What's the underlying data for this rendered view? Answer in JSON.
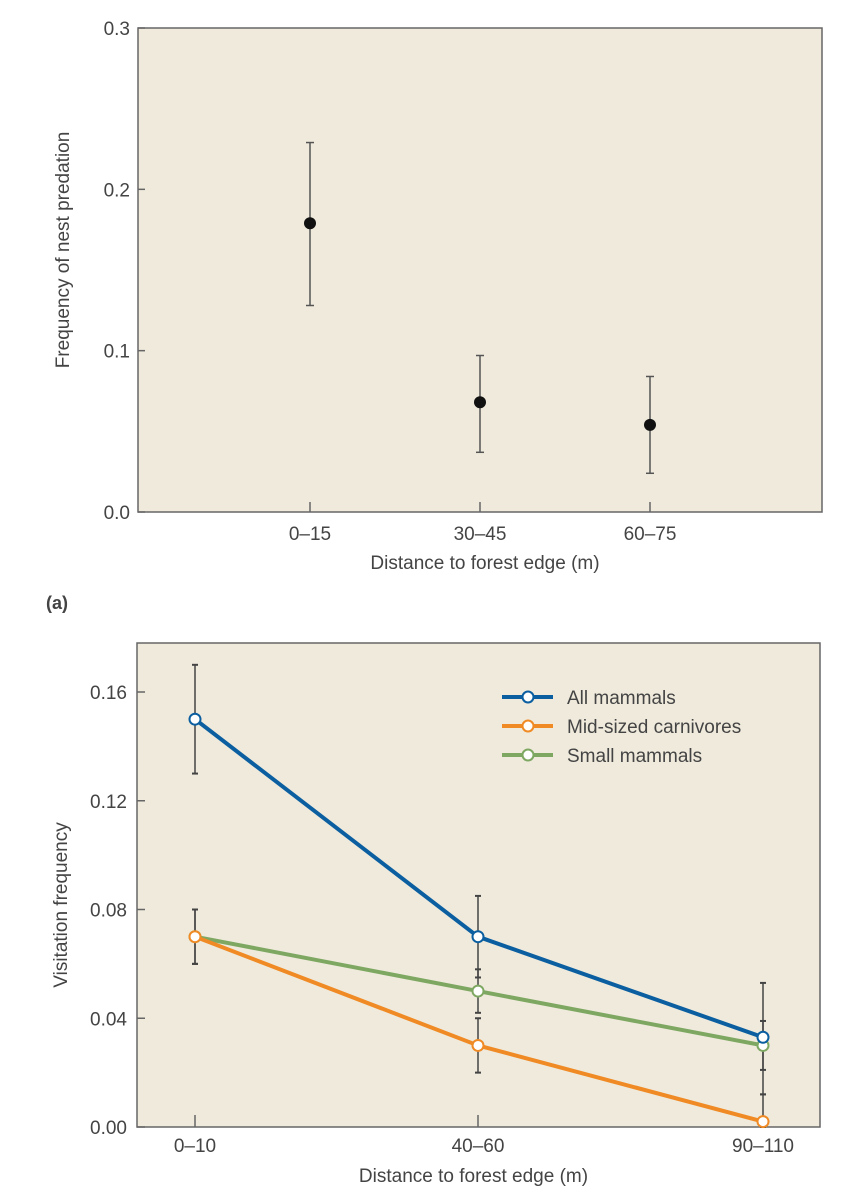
{
  "chart_data": [
    {
      "type": "scatter",
      "panel_label": "(a)",
      "xlabel": "Distance to forest edge (m)",
      "ylabel": "Frequency of nest predation",
      "categories": [
        "0–15",
        "30–45",
        "60–75"
      ],
      "values": [
        0.179,
        0.068,
        0.054
      ],
      "error_high": [
        0.229,
        0.097,
        0.084
      ],
      "error_low": [
        0.128,
        0.037,
        0.024
      ],
      "ylim": [
        0,
        0.3
      ],
      "yticks": [
        "0.0",
        "0.1",
        "0.2",
        "0.3"
      ],
      "grid": false,
      "colors": {
        "background": "#efeadc",
        "point": "#111111",
        "error": "#555555"
      }
    },
    {
      "type": "line",
      "xlabel": "Distance to forest edge (m)",
      "ylabel": "Visitation frequency",
      "categories": [
        "0–10",
        "40–60",
        "90–110"
      ],
      "ylim": [
        0,
        0.18
      ],
      "yticks": [
        "0.00",
        "0.04",
        "0.08",
        "0.12",
        "0.16"
      ],
      "grid": false,
      "legend_position": "top-right",
      "series": [
        {
          "name": "All mammals",
          "color": "#0b5fa0",
          "values": [
            0.15,
            0.07,
            0.033
          ],
          "error_high": [
            0.17,
            0.085,
            0.053
          ],
          "error_low": [
            0.13,
            0.055,
            0.012
          ]
        },
        {
          "name": "Mid-sized carnivores",
          "color": "#f08a24",
          "values": [
            0.07,
            0.03,
            0.002
          ],
          "error_high": [
            0.08,
            0.04,
            0.012
          ],
          "error_low": [
            0.06,
            0.02,
            0.0
          ]
        },
        {
          "name": "Small mammals",
          "color": "#7ea862",
          "values": [
            0.07,
            0.05,
            0.03
          ],
          "error_high": [
            0.08,
            0.058,
            0.039
          ],
          "error_low": [
            0.06,
            0.042,
            0.021
          ]
        }
      ],
      "colors": {
        "background": "#efeadc"
      }
    }
  ]
}
